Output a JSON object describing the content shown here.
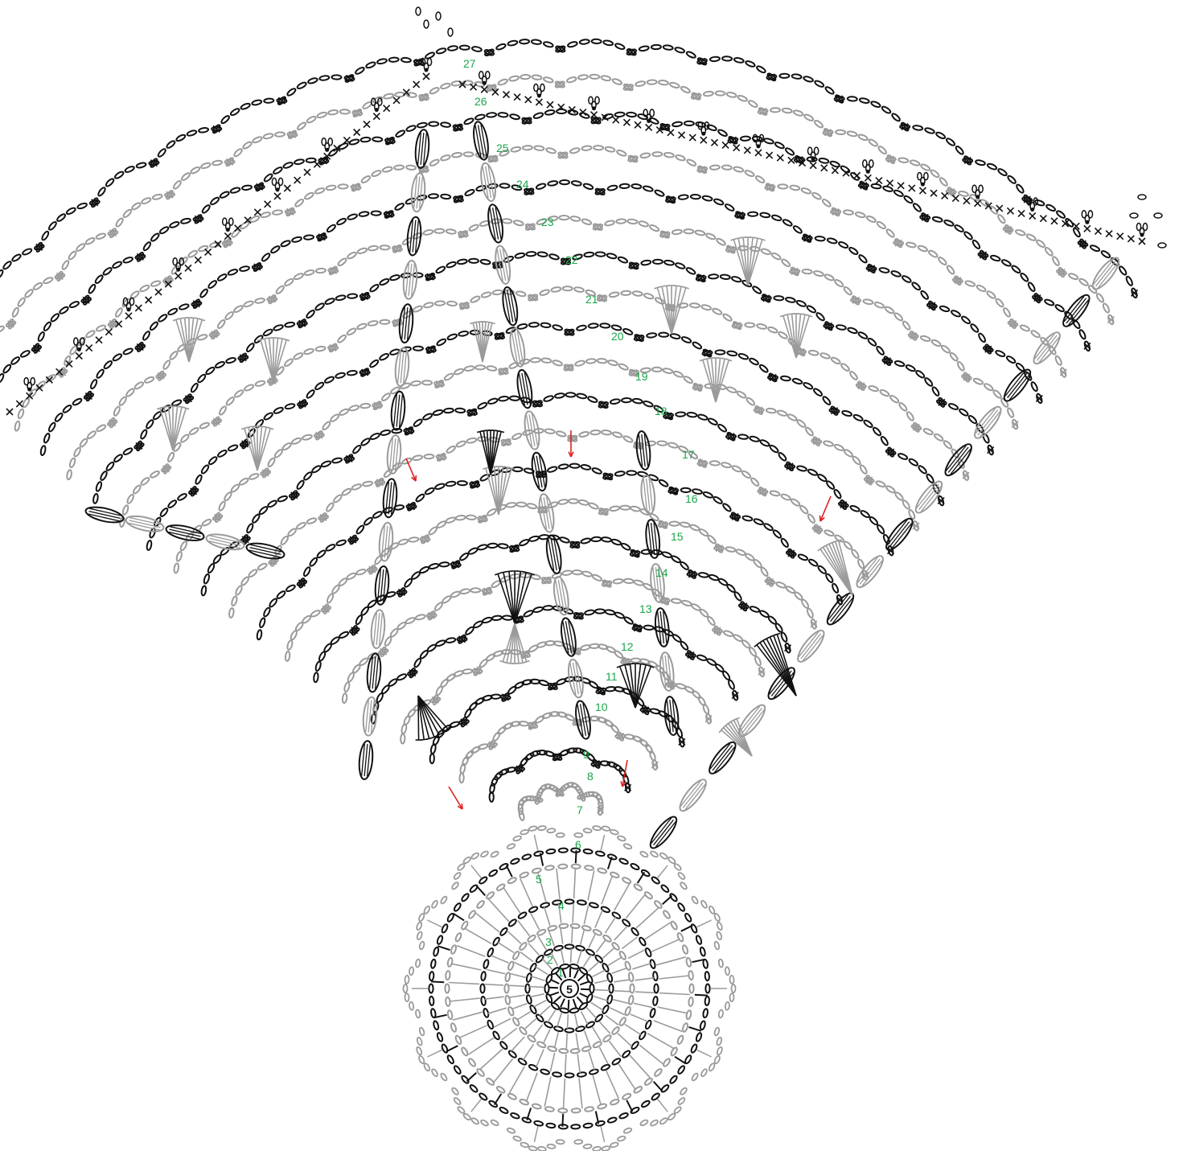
{
  "diagram": {
    "center_label": "5",
    "row_labels": [
      "1",
      "2",
      "3",
      "4",
      "5",
      "6",
      "7",
      "8",
      "9",
      "10",
      "11",
      "12",
      "13",
      "14",
      "15",
      "16",
      "17",
      "18",
      "19",
      "20",
      "21",
      "22",
      "23",
      "24",
      "25",
      "26",
      "27"
    ],
    "colors": {
      "black_rows": "#111111",
      "gray_rows": "#9a9a9a",
      "row_number": "#1aa64a",
      "direction_arrow": "#e02020"
    },
    "symbols": [
      "chain",
      "single-crochet",
      "double-crochet",
      "treble-cluster",
      "picot",
      "slip-stitch"
    ]
  }
}
